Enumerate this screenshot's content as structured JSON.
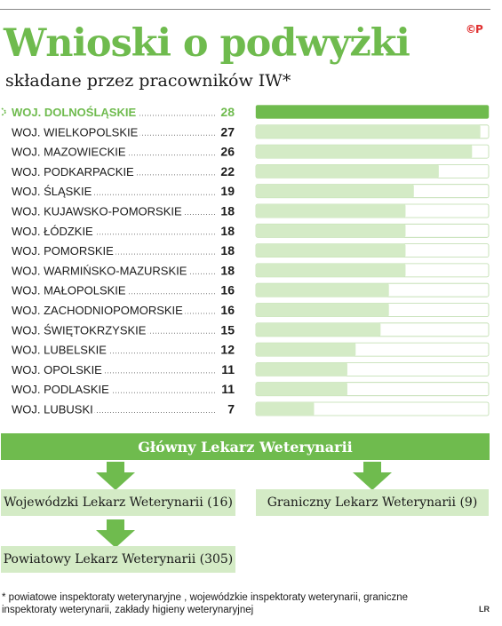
{
  "logo": "©P",
  "title": "Wnioski o podwyżki",
  "subtitle": "składane przez pracowników IW*",
  "chart_data": {
    "type": "bar",
    "orientation": "horizontal",
    "categories": [
      "WOJ. DOLNOŚLĄSKIE",
      "WOJ. WIELKOPOLSKIE",
      "WOJ. MAZOWIECKIE",
      "WOJ. PODKARPACKIE",
      "WOJ. ŚLĄSKIE",
      "WOJ. KUJAWSKO-POMORSKIE",
      "WOJ. ŁÓDZKIE",
      "WOJ. POMORSKIE",
      "WOJ. WARMIŃSKO-MAZURSKIE",
      "WOJ. MAŁOPOLSKIE",
      "WOJ. ZACHODNIOPOMORSKIE",
      "WOJ. ŚWIĘTOKRZYSKIE",
      "WOJ. LUBELSKIE",
      "WOJ. OPOLSKIE",
      "WOJ. PODLASKIE",
      "WOJ. LUBUSKI"
    ],
    "values": [
      28,
      27,
      26,
      22,
      19,
      18,
      18,
      18,
      18,
      16,
      16,
      15,
      12,
      11,
      11,
      7
    ],
    "xlim": [
      0,
      28
    ],
    "grid": false,
    "highlight_index": 0,
    "colors": {
      "highlight": "#6fbb4e",
      "bar": "#d4ebc6",
      "track": "#ffffff",
      "track_border": "#bcdcaa"
    }
  },
  "hierarchy": {
    "main": "Główny Lekarz Weterynarii",
    "left": "Wojewódzki Lekarz Weterynarii (16)",
    "right": "Graniczny Lekarz Weterynarii (9)",
    "bottom": "Powiatowy Lekarz Weterynarii (305)"
  },
  "footnote": "* powiatowe inspektoraty weterynaryjne , wojewódzkie inspektoraty weterynarii, graniczne inspektoraty weterynarii, zakłady higieny weterynaryjnej",
  "credit": "LR"
}
